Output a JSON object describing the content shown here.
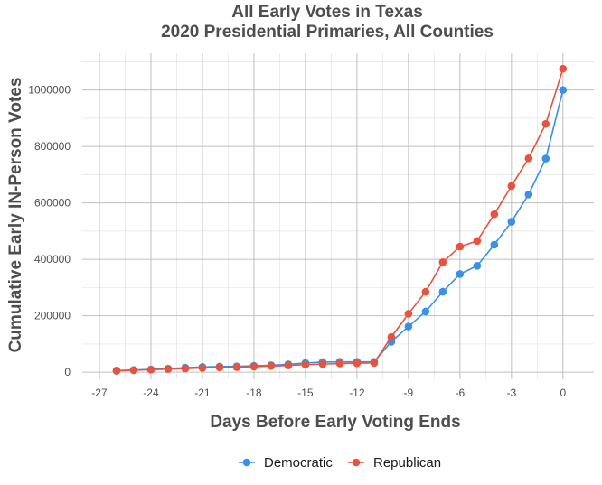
{
  "chart_data": {
    "type": "line",
    "title": "All Early Votes in Texas",
    "subtitle": "2020 Presidential Primaries, All Counties",
    "xlabel": "Days Before Early Voting Ends",
    "ylabel": "Cumulative Early IN-Person Votes",
    "xlim": [
      -28,
      1.8
    ],
    "ylim": [
      -25000,
      1130000
    ],
    "x_ticks": [
      -27,
      -24,
      -21,
      -18,
      -15,
      -12,
      -9,
      -6,
      -3,
      0
    ],
    "y_ticks": [
      0,
      200000,
      400000,
      600000,
      800000,
      1000000
    ],
    "grid": true,
    "legend_position": "bottom",
    "x": [
      -26,
      -25,
      -24,
      -23,
      -22,
      -21,
      -20,
      -19,
      -18,
      -17,
      -16,
      -15,
      -14,
      -13,
      -12,
      -11,
      -10,
      -9,
      -8,
      -7,
      -6,
      -5,
      -4,
      -3,
      -2,
      -1,
      0
    ],
    "series": [
      {
        "name": "Democratic",
        "color": "#3a8fe6",
        "values": [
          6000,
          8000,
          10000,
          13000,
          16000,
          19000,
          20000,
          21000,
          23000,
          25000,
          28000,
          33000,
          36000,
          37000,
          37000,
          37000,
          108000,
          162000,
          215000,
          285000,
          348000,
          377000,
          452000,
          533000,
          630000,
          757000,
          1000000
        ]
      },
      {
        "name": "Republican",
        "color": "#e8533f",
        "values": [
          5000,
          7000,
          9000,
          11000,
          13000,
          15000,
          17000,
          18000,
          20000,
          22000,
          24000,
          27000,
          29000,
          31000,
          32000,
          33000,
          125000,
          207000,
          285000,
          390000,
          445000,
          465000,
          560000,
          660000,
          758000,
          880000,
          1075000
        ]
      }
    ]
  }
}
